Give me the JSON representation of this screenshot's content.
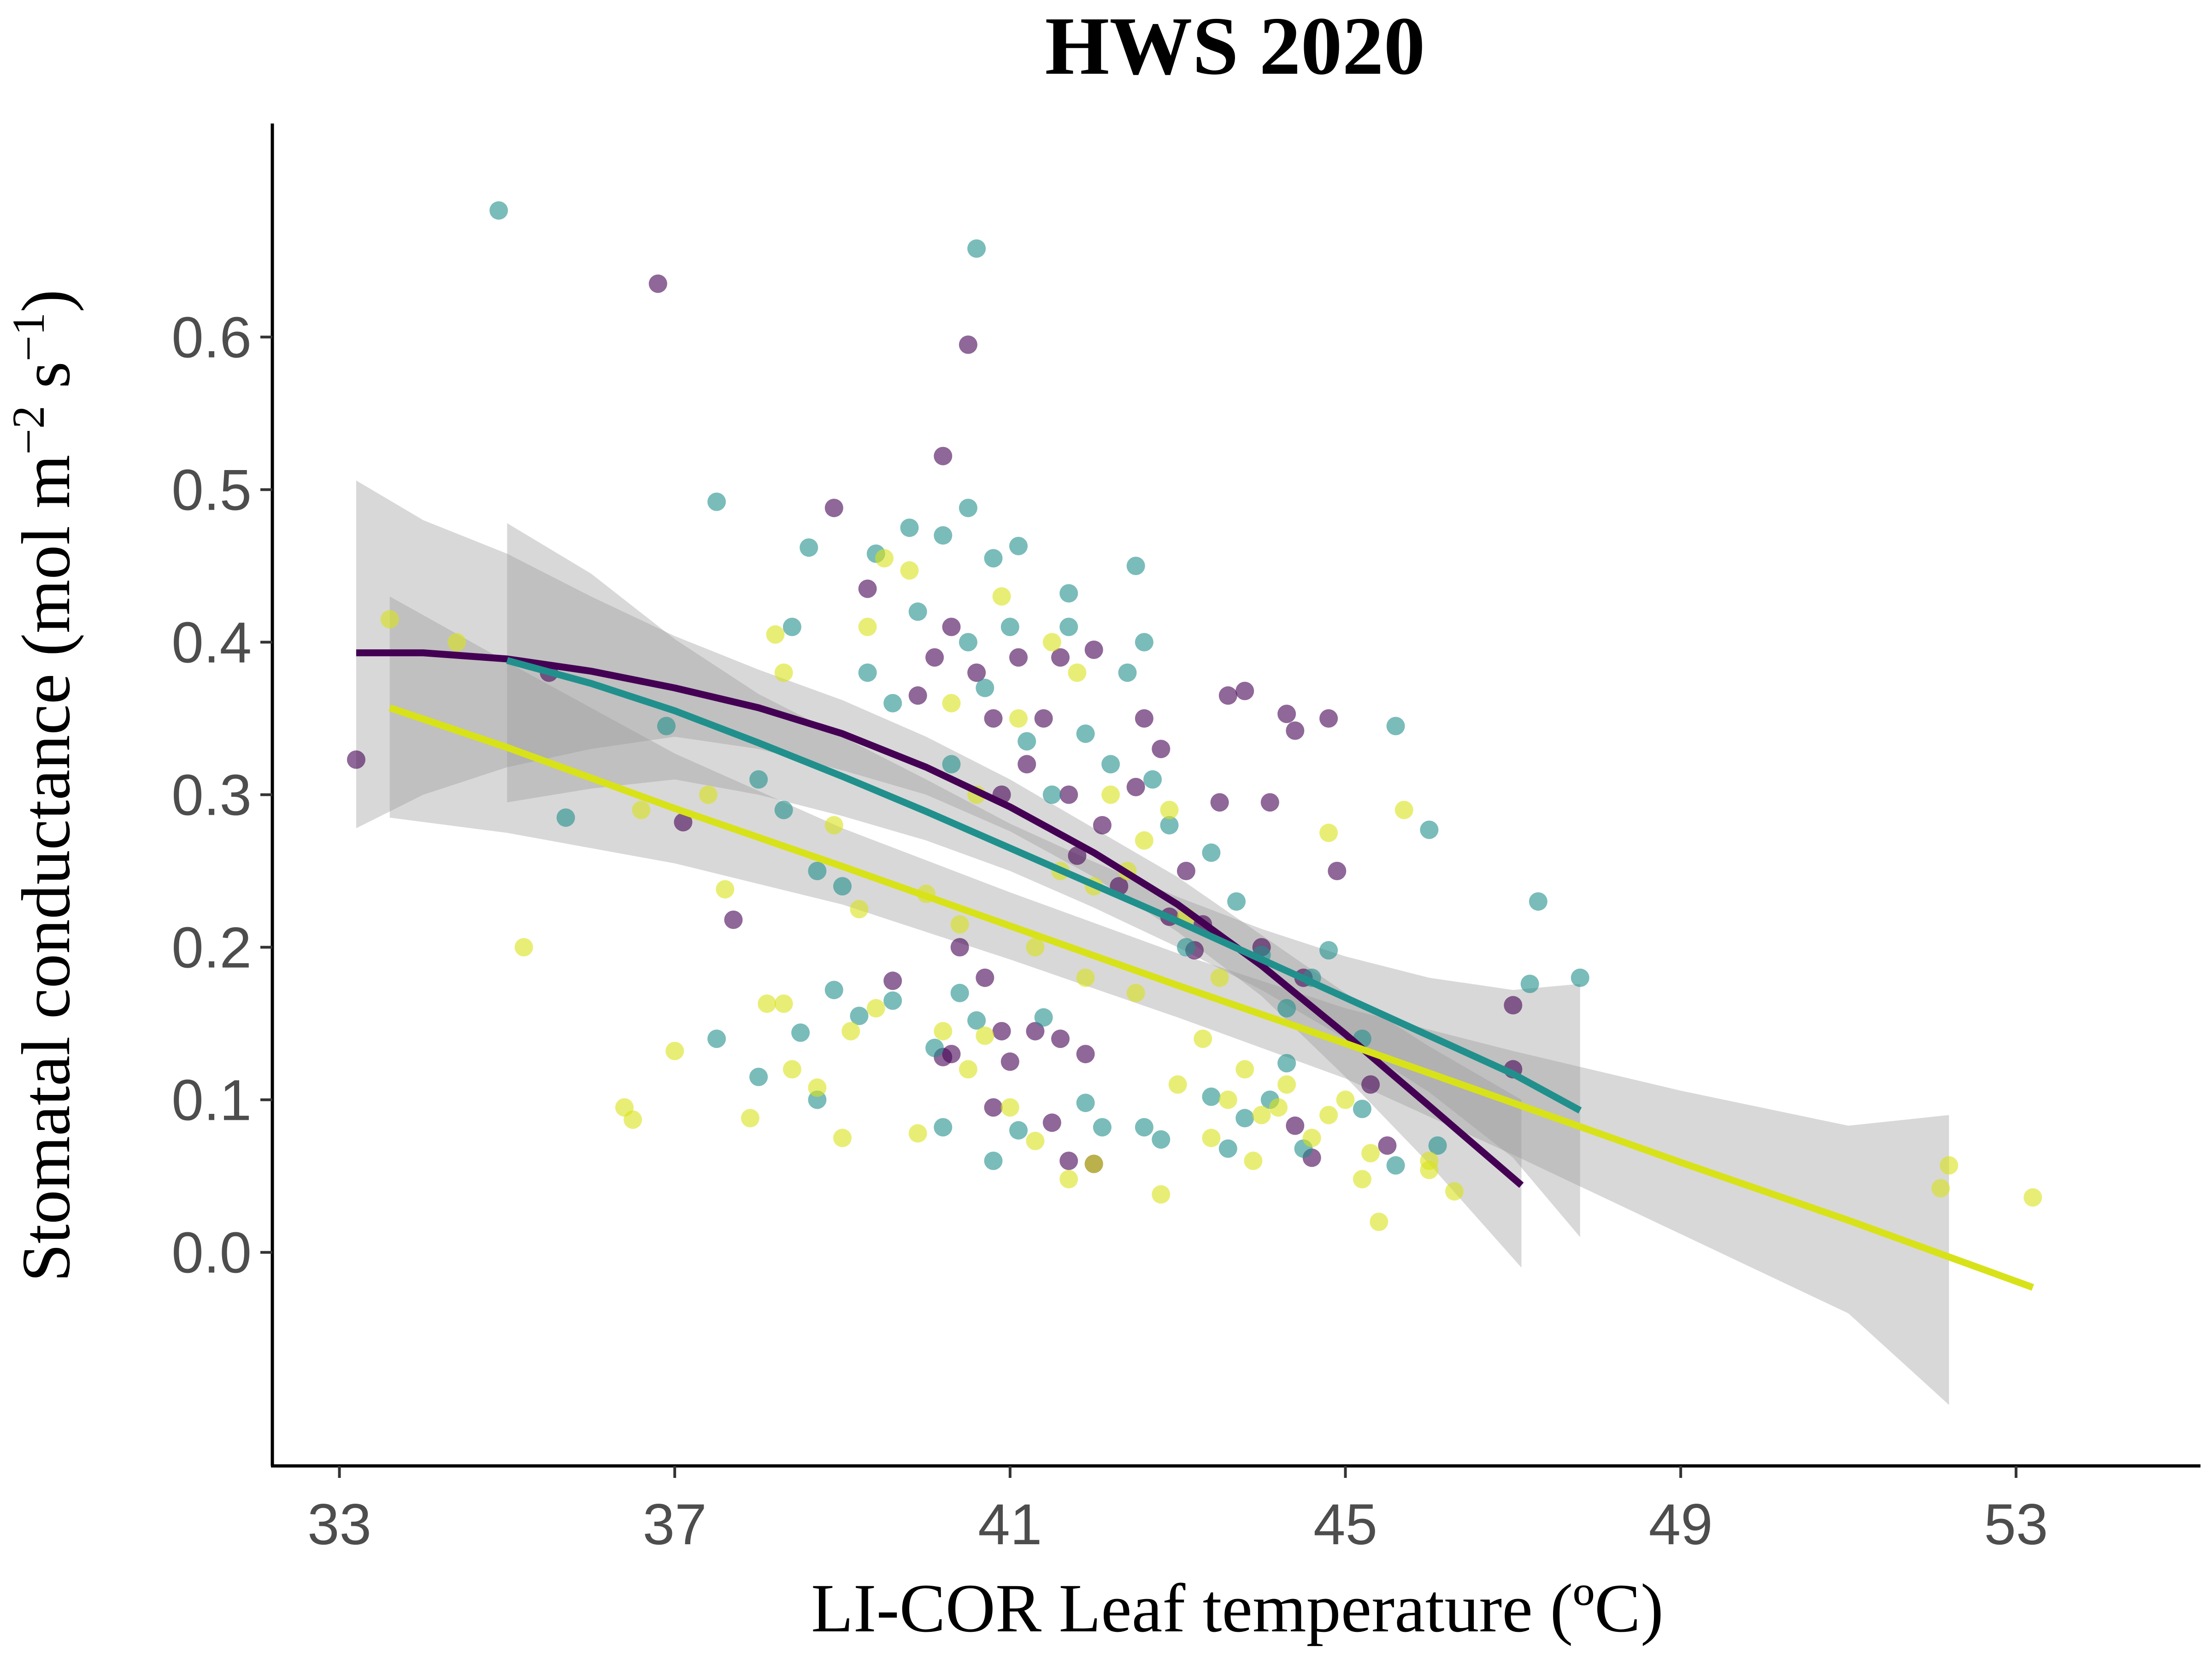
{
  "chart_data": {
    "type": "scatter",
    "title": "HWS 2020",
    "xlabel": "LI-COR Leaf temperature (ºC)",
    "ylabel": {
      "prefix": "Stomatal conductance (mol m",
      "sup1": "−2",
      "middle": " s",
      "sup2": "−1",
      "suffix": ")"
    },
    "xlim": [
      32.2,
      55.2
    ],
    "ylim": [
      -0.14,
      0.74
    ],
    "x_ticks": [
      33,
      37,
      41,
      45,
      49,
      53
    ],
    "x_tick_labels": [
      "33",
      "37",
      "41",
      "45",
      "49",
      "53"
    ],
    "y_ticks": [
      0.0,
      0.1,
      0.2,
      0.3,
      0.4,
      0.5,
      0.6
    ],
    "y_tick_labels": [
      "0.0",
      "0.1",
      "0.2",
      "0.3",
      "0.4",
      "0.5",
      "0.6"
    ],
    "grid": false,
    "legend": "none",
    "point_opacity": 0.6,
    "series": [
      {
        "color": "#440154",
        "points": [
          [
            33.2,
            0.323
          ],
          [
            35.5,
            0.38
          ],
          [
            36.8,
            0.635
          ],
          [
            37.1,
            0.282
          ],
          [
            37.7,
            0.218
          ],
          [
            38.9,
            0.488
          ],
          [
            39.3,
            0.435
          ],
          [
            39.6,
            0.178
          ],
          [
            39.9,
            0.365
          ],
          [
            40.2,
            0.522
          ],
          [
            40.5,
            0.595
          ],
          [
            40.1,
            0.39
          ],
          [
            40.3,
            0.41
          ],
          [
            40.6,
            0.38
          ],
          [
            40.8,
            0.35
          ],
          [
            40.9,
            0.3
          ],
          [
            41.1,
            0.39
          ],
          [
            41.2,
            0.32
          ],
          [
            41.4,
            0.35
          ],
          [
            41.6,
            0.39
          ],
          [
            41.7,
            0.3
          ],
          [
            41.8,
            0.26
          ],
          [
            42.0,
            0.395
          ],
          [
            42.1,
            0.28
          ],
          [
            42.3,
            0.24
          ],
          [
            42.5,
            0.305
          ],
          [
            42.6,
            0.35
          ],
          [
            42.8,
            0.33
          ],
          [
            42.9,
            0.22
          ],
          [
            43.1,
            0.25
          ],
          [
            43.3,
            0.215
          ],
          [
            43.5,
            0.295
          ],
          [
            43.6,
            0.365
          ],
          [
            43.8,
            0.368
          ],
          [
            44.0,
            0.2
          ],
          [
            44.1,
            0.295
          ],
          [
            44.3,
            0.353
          ],
          [
            44.4,
            0.342
          ],
          [
            44.5,
            0.18
          ],
          [
            44.8,
            0.35
          ],
          [
            44.9,
            0.25
          ],
          [
            40.9,
            0.145
          ],
          [
            41.0,
            0.125
          ],
          [
            41.3,
            0.145
          ],
          [
            41.6,
            0.14
          ],
          [
            41.9,
            0.13
          ],
          [
            41.7,
            0.06
          ],
          [
            42.0,
            0.058
          ],
          [
            41.5,
            0.085
          ],
          [
            43.2,
            0.198
          ],
          [
            44.4,
            0.083
          ],
          [
            44.6,
            0.062
          ],
          [
            45.3,
            0.11
          ],
          [
            45.5,
            0.07
          ],
          [
            47.0,
            0.162
          ],
          [
            47.0,
            0.12
          ],
          [
            40.4,
            0.2
          ],
          [
            40.3,
            0.13
          ],
          [
            40.7,
            0.18
          ],
          [
            40.8,
            0.095
          ],
          [
            40.2,
            0.128
          ]
        ],
        "fit": [
          [
            33.2,
            0.393
          ],
          [
            34.0,
            0.393
          ],
          [
            35.0,
            0.389
          ],
          [
            36.0,
            0.381
          ],
          [
            37.0,
            0.37
          ],
          [
            38.0,
            0.357
          ],
          [
            39.0,
            0.34
          ],
          [
            40.0,
            0.318
          ],
          [
            41.0,
            0.292
          ],
          [
            42.0,
            0.262
          ],
          [
            43.0,
            0.228
          ],
          [
            44.0,
            0.188
          ],
          [
            45.0,
            0.143
          ],
          [
            46.0,
            0.096
          ],
          [
            47.1,
            0.044
          ]
        ],
        "band": [
          [
            33.2,
            0.278,
            0.506
          ],
          [
            34.0,
            0.3,
            0.48
          ],
          [
            35.0,
            0.318,
            0.458
          ],
          [
            36.0,
            0.33,
            0.43
          ],
          [
            37.0,
            0.338,
            0.404
          ],
          [
            38.0,
            0.33,
            0.382
          ],
          [
            39.0,
            0.316,
            0.362
          ],
          [
            40.0,
            0.3,
            0.338
          ],
          [
            41.0,
            0.276,
            0.31
          ],
          [
            42.0,
            0.246,
            0.278
          ],
          [
            43.0,
            0.21,
            0.246
          ],
          [
            44.0,
            0.168,
            0.208
          ],
          [
            45.0,
            0.115,
            0.17
          ],
          [
            46.0,
            0.058,
            0.135
          ],
          [
            47.1,
            -0.01,
            0.1
          ]
        ]
      },
      {
        "color": "#21908c",
        "points": [
          [
            34.9,
            0.683
          ],
          [
            37.5,
            0.492
          ],
          [
            38.4,
            0.41
          ],
          [
            38.6,
            0.462
          ],
          [
            39.4,
            0.458
          ],
          [
            39.8,
            0.475
          ],
          [
            40.2,
            0.47
          ],
          [
            40.6,
            0.658
          ],
          [
            40.5,
            0.488
          ],
          [
            40.8,
            0.455
          ],
          [
            41.1,
            0.463
          ],
          [
            41.7,
            0.432
          ],
          [
            42.5,
            0.45
          ],
          [
            42.6,
            0.4
          ],
          [
            35.7,
            0.285
          ],
          [
            36.9,
            0.345
          ],
          [
            38.0,
            0.31
          ],
          [
            38.3,
            0.29
          ],
          [
            38.7,
            0.25
          ],
          [
            39.0,
            0.24
          ],
          [
            39.3,
            0.38
          ],
          [
            39.6,
            0.36
          ],
          [
            39.9,
            0.42
          ],
          [
            40.3,
            0.32
          ],
          [
            40.5,
            0.4
          ],
          [
            40.7,
            0.37
          ],
          [
            41.0,
            0.41
          ],
          [
            41.2,
            0.335
          ],
          [
            41.5,
            0.3
          ],
          [
            41.7,
            0.41
          ],
          [
            41.9,
            0.34
          ],
          [
            42.2,
            0.32
          ],
          [
            42.4,
            0.38
          ],
          [
            42.7,
            0.31
          ],
          [
            42.9,
            0.28
          ],
          [
            43.1,
            0.2
          ],
          [
            43.4,
            0.262
          ],
          [
            43.7,
            0.23
          ],
          [
            44.0,
            0.195
          ],
          [
            44.3,
            0.16
          ],
          [
            44.6,
            0.18
          ],
          [
            44.8,
            0.198
          ],
          [
            45.2,
            0.14
          ],
          [
            45.6,
            0.345
          ],
          [
            46.0,
            0.277
          ],
          [
            47.2,
            0.176
          ],
          [
            47.3,
            0.23
          ],
          [
            47.8,
            0.18
          ],
          [
            37.5,
            0.14
          ],
          [
            38.0,
            0.115
          ],
          [
            38.5,
            0.144
          ],
          [
            38.7,
            0.1
          ],
          [
            38.9,
            0.172
          ],
          [
            39.2,
            0.155
          ],
          [
            39.6,
            0.165
          ],
          [
            40.1,
            0.134
          ],
          [
            40.4,
            0.17
          ],
          [
            40.6,
            0.152
          ],
          [
            41.4,
            0.154
          ],
          [
            41.9,
            0.098
          ],
          [
            42.1,
            0.082
          ],
          [
            42.6,
            0.082
          ],
          [
            42.8,
            0.074
          ],
          [
            43.4,
            0.102
          ],
          [
            43.8,
            0.088
          ],
          [
            44.1,
            0.1
          ],
          [
            44.5,
            0.068
          ],
          [
            45.2,
            0.094
          ],
          [
            45.6,
            0.057
          ],
          [
            46.1,
            0.07
          ],
          [
            40.2,
            0.082
          ],
          [
            40.8,
            0.06
          ],
          [
            41.1,
            0.08
          ],
          [
            43.6,
            0.068
          ],
          [
            44.3,
            0.124
          ]
        ],
        "fit": [
          [
            35.0,
            0.388
          ],
          [
            36.0,
            0.373
          ],
          [
            37.0,
            0.355
          ],
          [
            38.0,
            0.334
          ],
          [
            39.0,
            0.312
          ],
          [
            40.0,
            0.289
          ],
          [
            41.0,
            0.265
          ],
          [
            42.0,
            0.241
          ],
          [
            43.0,
            0.217
          ],
          [
            44.0,
            0.192
          ],
          [
            45.0,
            0.167
          ],
          [
            46.0,
            0.142
          ],
          [
            47.0,
            0.117
          ],
          [
            47.8,
            0.093
          ]
        ],
        "band": [
          [
            35.0,
            0.295,
            0.478
          ],
          [
            36.0,
            0.304,
            0.445
          ],
          [
            37.0,
            0.31,
            0.402
          ],
          [
            38.0,
            0.3,
            0.366
          ],
          [
            39.0,
            0.286,
            0.338
          ],
          [
            40.0,
            0.27,
            0.31
          ],
          [
            41.0,
            0.25,
            0.281
          ],
          [
            42.0,
            0.226,
            0.256
          ],
          [
            43.0,
            0.2,
            0.233
          ],
          [
            44.0,
            0.172,
            0.212
          ],
          [
            45.0,
            0.14,
            0.194
          ],
          [
            46.0,
            0.105,
            0.18
          ],
          [
            47.0,
            0.062,
            0.172
          ],
          [
            47.8,
            0.01,
            0.176
          ]
        ]
      },
      {
        "color": "#d8e219",
        "points": [
          [
            33.6,
            0.415
          ],
          [
            34.4,
            0.4
          ],
          [
            35.2,
            0.2
          ],
          [
            36.4,
            0.095
          ],
          [
            36.5,
            0.087
          ],
          [
            36.6,
            0.29
          ],
          [
            37.0,
            0.132
          ],
          [
            37.4,
            0.3
          ],
          [
            37.6,
            0.238
          ],
          [
            37.9,
            0.088
          ],
          [
            38.1,
            0.163
          ],
          [
            38.2,
            0.405
          ],
          [
            38.3,
            0.38
          ],
          [
            38.7,
            0.108
          ],
          [
            38.9,
            0.28
          ],
          [
            39.3,
            0.41
          ],
          [
            39.5,
            0.455
          ],
          [
            39.8,
            0.447
          ],
          [
            40.0,
            0.235
          ],
          [
            40.3,
            0.36
          ],
          [
            40.6,
            0.3
          ],
          [
            40.9,
            0.43
          ],
          [
            41.1,
            0.35
          ],
          [
            41.3,
            0.2
          ],
          [
            41.5,
            0.4
          ],
          [
            41.6,
            0.25
          ],
          [
            41.8,
            0.38
          ],
          [
            42.0,
            0.24
          ],
          [
            42.2,
            0.3
          ],
          [
            42.4,
            0.25
          ],
          [
            42.6,
            0.27
          ],
          [
            42.9,
            0.29
          ],
          [
            43.1,
            0.22
          ],
          [
            43.3,
            0.14
          ],
          [
            43.6,
            0.1
          ],
          [
            43.8,
            0.12
          ],
          [
            44.0,
            0.09
          ],
          [
            44.3,
            0.11
          ],
          [
            44.6,
            0.075
          ],
          [
            44.8,
            0.09
          ],
          [
            45.0,
            0.1
          ],
          [
            45.2,
            0.048
          ],
          [
            45.4,
            0.02
          ],
          [
            45.7,
            0.29
          ],
          [
            46.0,
            0.06
          ],
          [
            46.3,
            0.04
          ],
          [
            44.8,
            0.275
          ],
          [
            39.1,
            0.145
          ],
          [
            39.4,
            0.16
          ],
          [
            39.9,
            0.078
          ],
          [
            40.5,
            0.12
          ],
          [
            40.7,
            0.142
          ],
          [
            41.0,
            0.095
          ],
          [
            41.3,
            0.073
          ],
          [
            41.7,
            0.048
          ],
          [
            42.0,
            0.058
          ],
          [
            42.8,
            0.038
          ],
          [
            43.0,
            0.11
          ],
          [
            43.4,
            0.075
          ],
          [
            43.9,
            0.06
          ],
          [
            38.3,
            0.163
          ],
          [
            38.4,
            0.12
          ],
          [
            39.0,
            0.075
          ],
          [
            40.2,
            0.145
          ],
          [
            44.2,
            0.095
          ],
          [
            45.3,
            0.065
          ],
          [
            46.0,
            0.054
          ],
          [
            52.1,
            0.042
          ],
          [
            52.2,
            0.057
          ],
          [
            53.2,
            0.036
          ],
          [
            39.2,
            0.225
          ],
          [
            40.4,
            0.215
          ],
          [
            41.9,
            0.18
          ],
          [
            42.5,
            0.17
          ],
          [
            43.5,
            0.18
          ]
        ],
        "fit": [
          [
            33.6,
            0.357
          ],
          [
            35.0,
            0.331
          ],
          [
            37.0,
            0.291
          ],
          [
            39.0,
            0.253
          ],
          [
            41.0,
            0.214
          ],
          [
            43.0,
            0.175
          ],
          [
            45.0,
            0.137
          ],
          [
            47.0,
            0.098
          ],
          [
            49.0,
            0.059
          ],
          [
            51.0,
            0.021
          ],
          [
            53.2,
            -0.023
          ]
        ],
        "band": [
          [
            33.6,
            0.285,
            0.43
          ],
          [
            35.0,
            0.275,
            0.387
          ],
          [
            37.0,
            0.255,
            0.327
          ],
          [
            39.0,
            0.228,
            0.278
          ],
          [
            41.0,
            0.192,
            0.236
          ],
          [
            43.0,
            0.154,
            0.196
          ],
          [
            45.0,
            0.114,
            0.16
          ],
          [
            47.0,
            0.064,
            0.132
          ],
          [
            49.0,
            0.012,
            0.106
          ],
          [
            51.0,
            -0.04,
            0.083
          ],
          [
            52.2,
            -0.1,
            0.09
          ]
        ]
      }
    ]
  }
}
